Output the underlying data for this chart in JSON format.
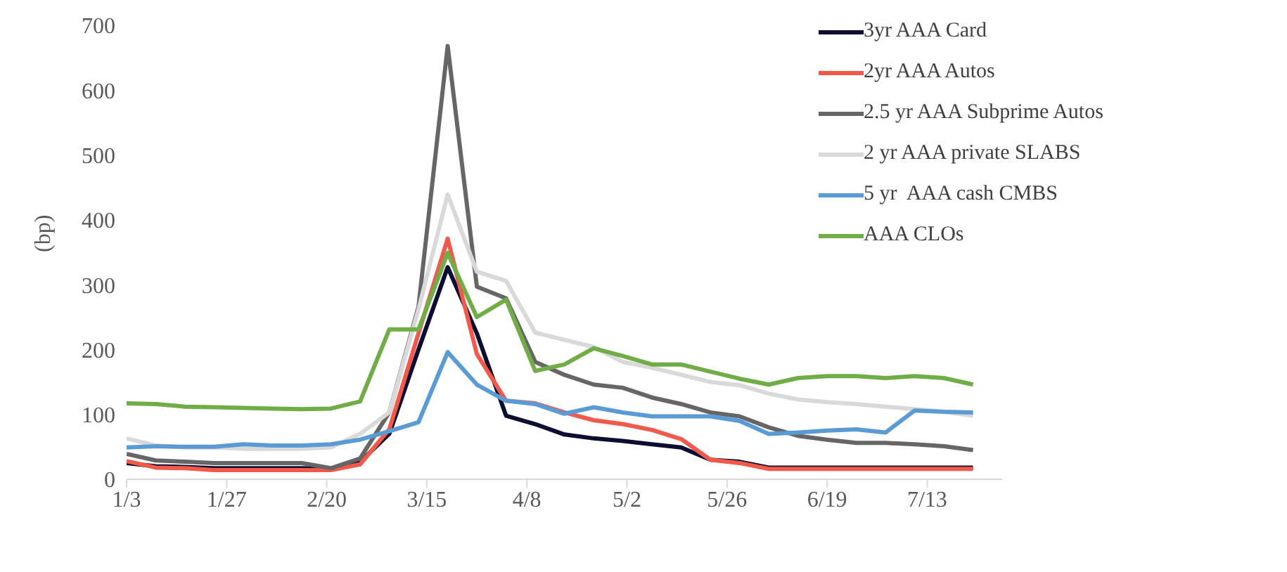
{
  "chart_data": {
    "type": "line",
    "ylabel": "(bp)",
    "x": [
      "--01-03",
      "--01-10",
      "--01-17",
      "--01-24",
      "--01-31",
      "--02-07",
      "--02-14",
      "--02-21",
      "--02-28",
      "--03-06",
      "--03-13",
      "--03-20",
      "--03-27",
      "--04-03",
      "--04-10",
      "--04-17",
      "--04-24",
      "--05-01",
      "--05-08",
      "--05-15",
      "--05-22",
      "--05-29",
      "--06-05",
      "--06-12",
      "--06-19",
      "--06-26",
      "--07-03",
      "--07-10",
      "--07-17",
      "--07-24"
    ],
    "series": [
      {
        "name": "3yr AAA Card",
        "color": "#0d0d33",
        "values": [
          25,
          20,
          19,
          17,
          17,
          17,
          17,
          16,
          27,
          70,
          200,
          327,
          225,
          98,
          85,
          69,
          63,
          59,
          54,
          49,
          30,
          27,
          18,
          18,
          18,
          18,
          18,
          18,
          18,
          18
        ]
      },
      {
        "name": "2yr AAA Autos",
        "color": "#f15a4a",
        "values": [
          28,
          18,
          17,
          14,
          14,
          14,
          14,
          14,
          23,
          77,
          225,
          371,
          193,
          121,
          117,
          103,
          91,
          85,
          76,
          62,
          30,
          25,
          16,
          16,
          16,
          16,
          16,
          16,
          16,
          16
        ]
      },
      {
        "name": "2.5 yr AAA Subprime Autos",
        "color": "#666666",
        "values": [
          39,
          29,
          27,
          25,
          25,
          25,
          25,
          17,
          32,
          103,
          266,
          668,
          297,
          279,
          181,
          161,
          146,
          141,
          126,
          116,
          103,
          97,
          80,
          67,
          61,
          56,
          56,
          54,
          51,
          45
        ]
      },
      {
        "name": "2 yr AAA private SLABS",
        "color": "#d9d9d9",
        "values": [
          63,
          52,
          49,
          49,
          47,
          47,
          47,
          49,
          70,
          103,
          262,
          439,
          320,
          306,
          226,
          215,
          204,
          181,
          172,
          161,
          150,
          145,
          132,
          123,
          119,
          116,
          112,
          108,
          104,
          98
        ]
      },
      {
        "name": "5 yr  AAA cash CMBS",
        "color": "#5b9bd5",
        "values": [
          49,
          51,
          50,
          50,
          54,
          52,
          52,
          54,
          61,
          74,
          88,
          196,
          146,
          121,
          116,
          101,
          111,
          103,
          97,
          97,
          97,
          90,
          70,
          72,
          75,
          77,
          72,
          106,
          104,
          103
        ]
      },
      {
        "name": "AAA CLOs",
        "color": "#70ad47",
        "values": [
          117,
          116,
          112,
          111,
          110,
          109,
          108,
          109,
          120,
          231,
          231,
          349,
          250,
          277,
          167,
          177,
          202,
          190,
          177,
          177,
          166,
          155,
          146,
          156,
          159,
          159,
          156,
          159,
          156,
          146
        ]
      }
    ],
    "xlim": [
      "--01-03",
      "--07-31"
    ],
    "xticks": [
      {
        "value": "--01-03",
        "label": "1/3"
      },
      {
        "value": "--01-27",
        "label": "1/27"
      },
      {
        "value": "--02-20",
        "label": "2/20"
      },
      {
        "value": "--03-15",
        "label": "3/15"
      },
      {
        "value": "--04-08",
        "label": "4/8"
      },
      {
        "value": "--05-02",
        "label": "5/2"
      },
      {
        "value": "--05-26",
        "label": "5/26"
      },
      {
        "value": "--06-19",
        "label": "6/19"
      },
      {
        "value": "--07-13",
        "label": "7/13"
      }
    ],
    "ylim": [
      0,
      700
    ],
    "yticks": [
      0,
      100,
      200,
      300,
      400,
      500,
      600,
      700
    ],
    "grid": false,
    "legend": "top right",
    "line_style": "solid",
    "marker": "none"
  }
}
